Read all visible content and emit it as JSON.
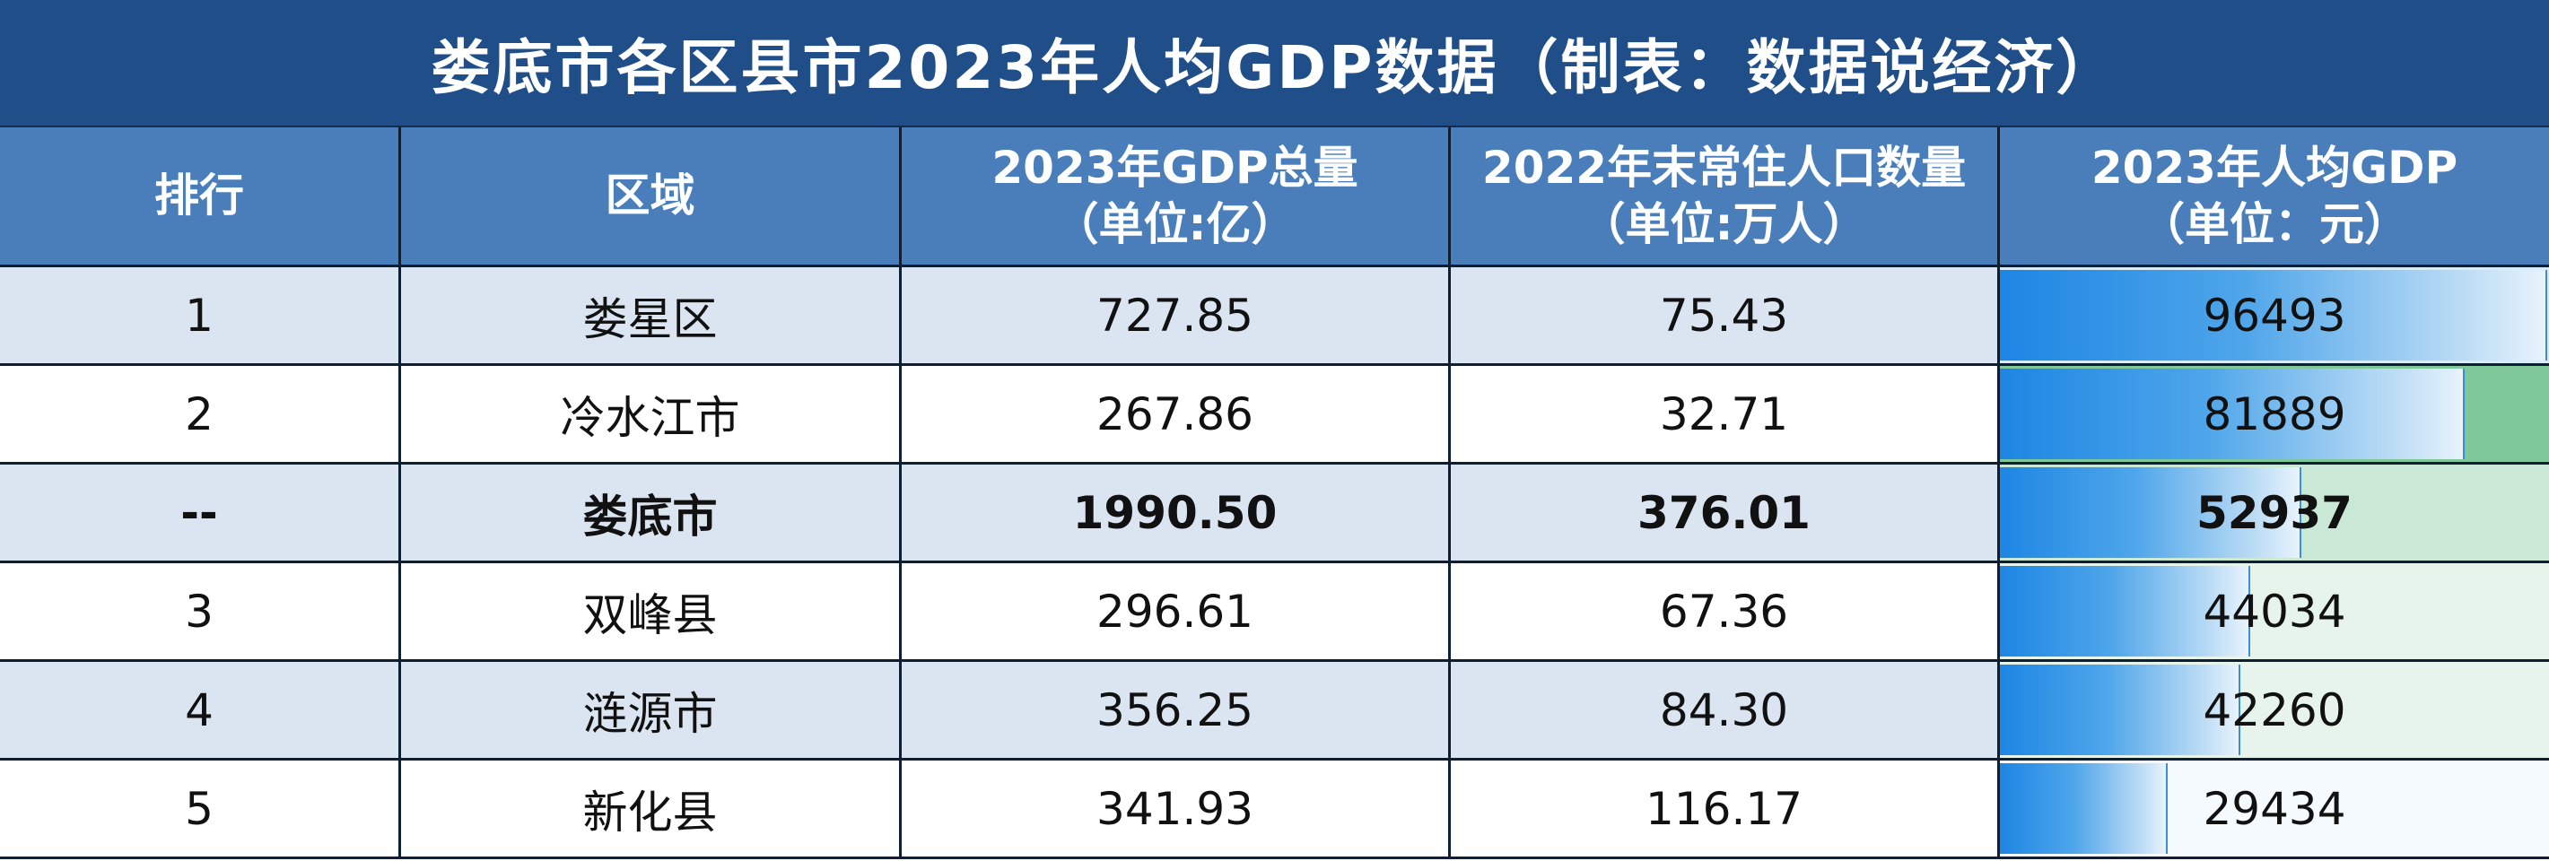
{
  "title": "娄底市各区县市2023年人均GDP数据（制表：数据说经济）",
  "chart_data": {
    "type": "table",
    "columns": [
      {
        "line1": "排行",
        "line2": ""
      },
      {
        "line1": "区域",
        "line2": ""
      },
      {
        "line1": "2023年GDP总量",
        "line2": "（单位:亿）"
      },
      {
        "line1": "2022年末常住人口数量",
        "line2": "（单位:万人）"
      },
      {
        "line1": "2023年人均GDP",
        "line2": "（单位：元）"
      }
    ],
    "rows": [
      {
        "rank": "1",
        "region": "娄星区",
        "gdp": "727.85",
        "population": "75.43",
        "per_capita": "96493",
        "per_capita_value": 96493,
        "bold": false
      },
      {
        "rank": "2",
        "region": "冷水江市",
        "gdp": "267.86",
        "population": "32.71",
        "per_capita": "81889",
        "per_capita_value": 81889,
        "bold": false
      },
      {
        "rank": "--",
        "region": "娄底市",
        "gdp": "1990.50",
        "population": "376.01",
        "per_capita": "52937",
        "per_capita_value": 52937,
        "bold": true
      },
      {
        "rank": "3",
        "region": "双峰县",
        "gdp": "296.61",
        "population": "67.36",
        "per_capita": "44034",
        "per_capita_value": 44034,
        "bold": false
      },
      {
        "rank": "4",
        "region": "涟源市",
        "gdp": "356.25",
        "population": "84.30",
        "per_capita": "42260",
        "per_capita_value": 42260,
        "bold": false
      },
      {
        "rank": "5",
        "region": "新化县",
        "gdp": "341.93",
        "population": "116.17",
        "per_capita": "29434",
        "per_capita_value": 29434,
        "bold": false
      }
    ],
    "data_bar_max": 96493,
    "data_bar_min": 0
  },
  "colors": {
    "title_bg": "#1f4e89",
    "header_bg": "#4a7ebb",
    "row_odd_bg": "#dbe5f1",
    "row_even_bg": "#ffffff",
    "bar_blue": "#1d86e3",
    "row_bg_colors": [
      "#d7ecfa",
      "#7fc89a",
      "#c9e8d6",
      "#e6f4ec",
      "#e6f4ec",
      "#f4fafd"
    ]
  }
}
